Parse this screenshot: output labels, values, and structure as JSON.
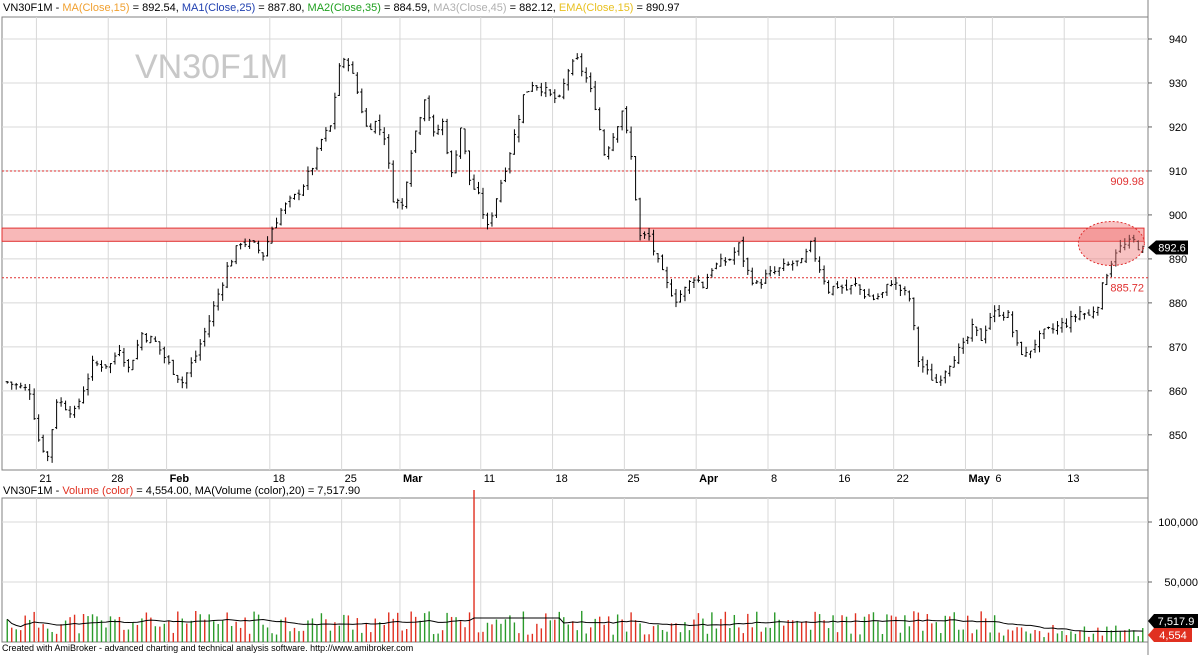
{
  "header_price": {
    "symbol": "VN30F1M",
    "sep": " - ",
    "items": [
      {
        "label": "MA(Close,15)",
        "value": "892.54",
        "color": "#f0a030"
      },
      {
        "label": "MA1(Close,25)",
        "value": "887.80",
        "color": "#2040b0"
      },
      {
        "label": "MA2(Close,35)",
        "value": "884.59",
        "color": "#20a020"
      },
      {
        "label": "MA3(Close,45)",
        "value": "882.12",
        "color": "#b0b0b0"
      },
      {
        "label": "EMA(Close,15)",
        "value": "890.97",
        "color": "#e8c020"
      }
    ]
  },
  "header_volume": {
    "symbol": "VN30F1M",
    "sep": " - ",
    "items": [
      {
        "label": "Volume (color)",
        "value": "4,554.00",
        "color": "#e03020"
      },
      {
        "label": "MA(Volume (color),20)",
        "value": "7,517.90",
        "color": "#000000"
      }
    ]
  },
  "watermark": "VN30F1M",
  "credit": "Created with AmiBroker - advanced charting and technical analysis software. http://www.amibroker.com",
  "colors": {
    "up": "#2a9a2a",
    "down": "#e03020",
    "zone_fill": "#f8b8b8",
    "zone_stroke": "#e03030",
    "level_line": "#e03030",
    "grid": "#d8d8d8"
  },
  "chart_data": [
    {
      "type": "bar",
      "subtype": "ohlc",
      "series": "VN30F1M price",
      "ylim": [
        842,
        945
      ],
      "yticks": [
        850,
        860,
        870,
        880,
        890,
        900,
        910,
        920,
        930,
        940
      ],
      "xticks": [
        {
          "label": "21",
          "bar": 7
        },
        {
          "label": "28",
          "bar": 23
        },
        {
          "label": "Feb",
          "bar": 36
        },
        {
          "label": "18",
          "bar": 59
        },
        {
          "label": "25",
          "bar": 75
        },
        {
          "label": "Mar",
          "bar": 88
        },
        {
          "label": "11",
          "bar": 106
        },
        {
          "label": "18",
          "bar": 122
        },
        {
          "label": "25",
          "bar": 138
        },
        {
          "label": "Apr",
          "bar": 154
        },
        {
          "label": "8",
          "bar": 170
        },
        {
          "label": "16",
          "bar": 185
        },
        {
          "label": "22",
          "bar": 198
        },
        {
          "label": "May",
          "bar": 214
        },
        {
          "label": "6",
          "bar": 220
        },
        {
          "label": "13",
          "bar": 236
        }
      ],
      "levels": [
        {
          "value": 909.98,
          "label": "909.98"
        },
        {
          "value": 885.72,
          "label": "885.72"
        }
      ],
      "zone": [
        894,
        897
      ],
      "last_price": "892.6",
      "anchors": [
        [
          0,
          862
        ],
        [
          5,
          860
        ],
        [
          7,
          849
        ],
        [
          9,
          845
        ],
        [
          11,
          858
        ],
        [
          15,
          855
        ],
        [
          19,
          866
        ],
        [
          23,
          866
        ],
        [
          25,
          870
        ],
        [
          27,
          865
        ],
        [
          30,
          873
        ],
        [
          33,
          871
        ],
        [
          36,
          866
        ],
        [
          39,
          862
        ],
        [
          42,
          868
        ],
        [
          45,
          876
        ],
        [
          47,
          882
        ],
        [
          49,
          888
        ],
        [
          52,
          894
        ],
        [
          55,
          893
        ],
        [
          57,
          891
        ],
        [
          59,
          897
        ],
        [
          61,
          901
        ],
        [
          64,
          904
        ],
        [
          66,
          907
        ],
        [
          68,
          911
        ],
        [
          70,
          917
        ],
        [
          72,
          920
        ],
        [
          74,
          934
        ],
        [
          76,
          935
        ],
        [
          78,
          928
        ],
        [
          80,
          920
        ],
        [
          82,
          921
        ],
        [
          84,
          918
        ],
        [
          86,
          904
        ],
        [
          88,
          902
        ],
        [
          90,
          915
        ],
        [
          93,
          927
        ],
        [
          95,
          918
        ],
        [
          97,
          921
        ],
        [
          99,
          909
        ],
        [
          101,
          920
        ],
        [
          103,
          908
        ],
        [
          105,
          904
        ],
        [
          107,
          897
        ],
        [
          109,
          904
        ],
        [
          111,
          911
        ],
        [
          113,
          918
        ],
        [
          115,
          927
        ],
        [
          117,
          930
        ],
        [
          119,
          929
        ],
        [
          121,
          927
        ],
        [
          123,
          926
        ],
        [
          125,
          933
        ],
        [
          127,
          935
        ],
        [
          129,
          931
        ],
        [
          131,
          925
        ],
        [
          133,
          914
        ],
        [
          135,
          918
        ],
        [
          137,
          924
        ],
        [
          139,
          913
        ],
        [
          141,
          895
        ],
        [
          143,
          895
        ],
        [
          145,
          889
        ],
        [
          147,
          884
        ],
        [
          149,
          881
        ],
        [
          151,
          883
        ],
        [
          153,
          886
        ],
        [
          155,
          884
        ],
        [
          157,
          888
        ],
        [
          159,
          889
        ],
        [
          161,
          890
        ],
        [
          163,
          893
        ],
        [
          165,
          887
        ],
        [
          167,
          884
        ],
        [
          169,
          886
        ],
        [
          171,
          887
        ],
        [
          173,
          888
        ],
        [
          175,
          889
        ],
        [
          177,
          889
        ],
        [
          179,
          893
        ],
        [
          181,
          888
        ],
        [
          183,
          883
        ],
        [
          185,
          884
        ],
        [
          187,
          883
        ],
        [
          189,
          884
        ],
        [
          191,
          882
        ],
        [
          193,
          881
        ],
        [
          195,
          882
        ],
        [
          197,
          885
        ],
        [
          199,
          883
        ],
        [
          201,
          881
        ],
        [
          203,
          867
        ],
        [
          205,
          864
        ],
        [
          207,
          862
        ],
        [
          209,
          865
        ],
        [
          211,
          868
        ],
        [
          213,
          870
        ],
        [
          215,
          874
        ],
        [
          217,
          872
        ],
        [
          219,
          877
        ],
        [
          221,
          878
        ],
        [
          223,
          877
        ],
        [
          225,
          870
        ],
        [
          227,
          868
        ],
        [
          229,
          871
        ],
        [
          231,
          873
        ],
        [
          233,
          874
        ],
        [
          235,
          875
        ],
        [
          237,
          876
        ],
        [
          239,
          878
        ],
        [
          241,
          877
        ],
        [
          243,
          880
        ],
        [
          245,
          887
        ],
        [
          247,
          892
        ],
        [
          249,
          893
        ],
        [
          251,
          894
        ],
        [
          253,
          892
        ]
      ],
      "bars": 254
    },
    {
      "type": "bar",
      "series": "Volume (color)",
      "ylim": [
        0,
        120000
      ],
      "yticks": [
        {
          "value": 50000,
          "label": "50,000"
        },
        {
          "value": 100000,
          "label": "100,000"
        }
      ],
      "last_volume": "4,554",
      "last_ma": "7,517.9",
      "spike": {
        "bar": 104,
        "value": 135000
      },
      "typical_range": [
        6000,
        26000
      ]
    }
  ]
}
